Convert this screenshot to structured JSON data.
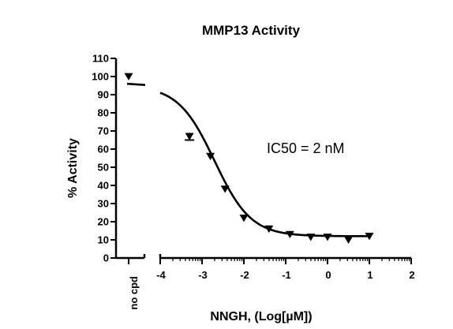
{
  "chart_data": {
    "type": "scatter",
    "title": "MMP13 Activity",
    "xlabel": "NNGH, (Log[µM])",
    "ylabel": "% Activity",
    "annotation": "IC50 = 2 nM",
    "ylim": [
      0,
      110
    ],
    "xlim": [
      -4,
      2
    ],
    "yticks": [
      "0",
      "10",
      "20",
      "30",
      "40",
      "50",
      "60",
      "70",
      "80",
      "90",
      "100",
      "110"
    ],
    "xticks": [
      "-4",
      "-3",
      "-2",
      "-1",
      "0",
      "1",
      "2"
    ],
    "control_label": "no cpd",
    "control": {
      "y": 100,
      "fit_y": 96
    },
    "points": [
      {
        "x": -3.3,
        "y": 67,
        "err": 2
      },
      {
        "x": -2.8,
        "y": 56
      },
      {
        "x": -2.45,
        "y": 38
      },
      {
        "x": -2.0,
        "y": 22
      },
      {
        "x": -1.4,
        "y": 16
      },
      {
        "x": -0.9,
        "y": 13
      },
      {
        "x": -0.4,
        "y": 11.5
      },
      {
        "x": 0.0,
        "y": 11.5
      },
      {
        "x": 0.5,
        "y": 10
      },
      {
        "x": 1.0,
        "y": 12
      }
    ],
    "fit": {
      "top": 95,
      "bottom": 12,
      "logIC50": -2.7,
      "hill": -1.0,
      "x_start": -4.0,
      "x_end": 1.0
    },
    "grid": false,
    "marker": "down-triangle"
  }
}
